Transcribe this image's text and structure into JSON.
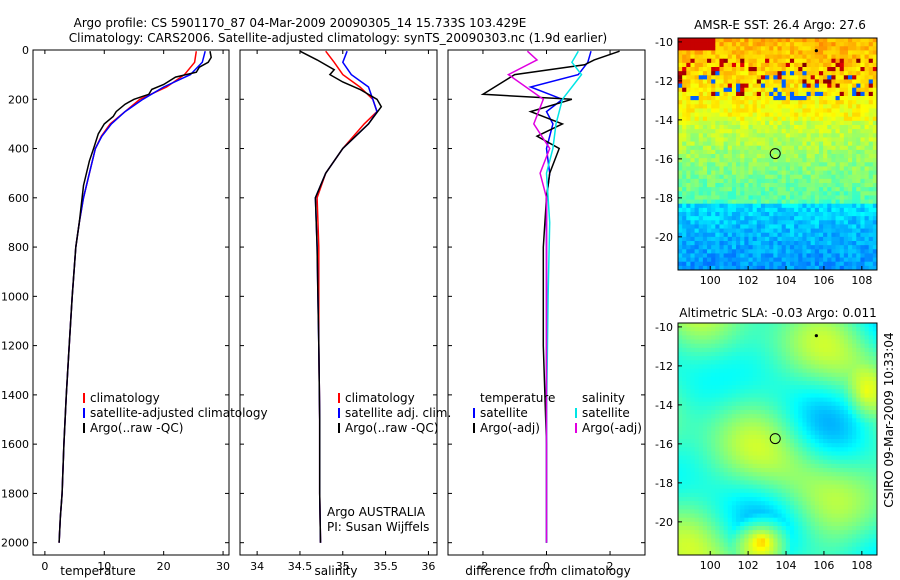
{
  "header": {
    "line1": "Argo profile: CS 5901170_87 04-Mar-2009 20090305_14 15.733S 103.429E",
    "line2": "Climatology: CARS2006. Satellite-adjusted climatology: synTS_20090303.nc (1.9d earlier)"
  },
  "footer_stamp": "CSIRO 09-Mar-2009 10:33:04",
  "chart_data": [
    {
      "type": "line",
      "panel": "temperature",
      "xlabel": "temperature",
      "xlim": [
        -2,
        31
      ],
      "ylim": [
        2050,
        0
      ],
      "xticks": [
        0,
        10,
        20,
        30
      ],
      "yticks": [
        0,
        200,
        400,
        600,
        800,
        1000,
        1200,
        1400,
        1600,
        1800,
        2000
      ],
      "legend": [
        "climatology",
        "satellite-adjusted climatology",
        "Argo(..raw -QC)"
      ],
      "series": [
        {
          "name": "climatology",
          "color": "#ff0000",
          "x": [
            25.5,
            25.2,
            23.5,
            20.5,
            16.0,
            13.5,
            11.0,
            9.5,
            8.5,
            7.5,
            6.5,
            5.8,
            5.2,
            4.6,
            4.1,
            3.6,
            3.2,
            2.9,
            2.6,
            2.4
          ],
          "y": [
            5,
            50,
            100,
            150,
            200,
            250,
            300,
            350,
            400,
            500,
            600,
            700,
            800,
            1000,
            1200,
            1400,
            1600,
            1800,
            1900,
            2000
          ]
        },
        {
          "name": "satellite-adjusted climatology",
          "color": "#0000ff",
          "x": [
            27.0,
            26.5,
            24.5,
            20.0,
            16.5,
            13.5,
            11.2,
            9.6,
            8.5,
            7.5,
            6.5,
            5.8,
            5.2,
            4.6,
            4.1,
            3.6,
            3.2,
            2.9,
            2.6,
            2.4
          ],
          "y": [
            5,
            50,
            100,
            150,
            200,
            250,
            300,
            350,
            400,
            500,
            600,
            700,
            800,
            1000,
            1200,
            1400,
            1600,
            1800,
            1900,
            2000
          ]
        },
        {
          "name": "Argo(..raw -QC)",
          "color": "#000000",
          "x": [
            27.8,
            28.0,
            27.5,
            26.0,
            25.5,
            22.0,
            20.0,
            18.0,
            17.5,
            15.0,
            13.5,
            12.0,
            11.5,
            10.0,
            9.0,
            8.2,
            7.5,
            6.5,
            5.8,
            5.2,
            4.6,
            4.1,
            3.6,
            3.2,
            2.9,
            2.6,
            2.4
          ],
          "y": [
            5,
            30,
            50,
            70,
            90,
            110,
            140,
            160,
            180,
            200,
            220,
            250,
            270,
            300,
            340,
            400,
            450,
            550,
            700,
            800,
            1000,
            1200,
            1400,
            1600,
            1800,
            1900,
            2000
          ]
        }
      ]
    },
    {
      "type": "line",
      "panel": "salinity",
      "xlabel": "salinity",
      "xlim": [
        33.8,
        36.1
      ],
      "ylim": [
        2050,
        0
      ],
      "xticks": [
        34,
        34.5,
        35,
        35.5,
        36
      ],
      "legend": [
        "climatology",
        "satellite adj. clim.",
        "Argo(..raw -QC)"
      ],
      "annotation": [
        "Argo AUSTRALIA",
        "PI: Susan Wijffels"
      ],
      "series": [
        {
          "name": "climatology",
          "color": "#ff0000",
          "x": [
            34.8,
            34.9,
            35.0,
            35.2,
            35.35,
            35.4,
            35.25,
            35.0,
            34.8,
            34.7,
            34.72,
            34.72,
            34.72,
            34.73,
            34.73,
            34.74
          ],
          "y": [
            5,
            50,
            100,
            150,
            200,
            250,
            300,
            400,
            500,
            600,
            800,
            1000,
            1200,
            1500,
            1800,
            2000
          ]
        },
        {
          "name": "satellite adj. clim.",
          "color": "#0000ff",
          "x": [
            35.05,
            35.0,
            35.1,
            35.3,
            35.35,
            35.4,
            35.3,
            35.0,
            34.8,
            34.68,
            34.7,
            34.71,
            34.72,
            34.73,
            34.73,
            34.74
          ],
          "y": [
            5,
            50,
            100,
            150,
            200,
            250,
            300,
            400,
            500,
            600,
            800,
            1000,
            1200,
            1500,
            1800,
            2000
          ]
        },
        {
          "name": "Argo(..raw -QC)",
          "color": "#000000",
          "x": [
            34.5,
            34.7,
            34.9,
            34.85,
            35.0,
            35.2,
            35.4,
            35.45,
            35.3,
            35.0,
            34.8,
            34.68,
            34.7,
            34.71,
            34.72,
            34.73,
            34.73,
            34.74
          ],
          "y": [
            5,
            40,
            80,
            100,
            130,
            160,
            200,
            230,
            300,
            400,
            500,
            600,
            800,
            1000,
            1200,
            1500,
            1800,
            2000
          ]
        }
      ]
    },
    {
      "type": "line",
      "panel": "difference",
      "xlabel": "difference from climatology",
      "xlim": [
        -3.1,
        3.1
      ],
      "ylim": [
        2050,
        0
      ],
      "xticks": [
        -2,
        0,
        2
      ],
      "legend": [
        "temperature",
        "satellite",
        "Argo(-adj)",
        "salinity",
        "satellite",
        "Argo(-adj)"
      ],
      "series": [
        {
          "name": "temperature satellite",
          "color": "#0000ff",
          "x": [
            1.4,
            1.3,
            1.0,
            -0.5,
            0.5,
            0.0,
            0.2,
            0.0,
            0.1,
            0.0,
            0.0,
            0.0,
            0.0,
            0.0
          ],
          "y": [
            5,
            50,
            100,
            150,
            200,
            250,
            300,
            400,
            500,
            600,
            800,
            1200,
            1600,
            2000
          ]
        },
        {
          "name": "temperature Argo(-adj)",
          "color": "#000000",
          "x": [
            2.3,
            1.5,
            1.2,
            -1.0,
            -2.0,
            0.8,
            -0.5,
            0.5,
            -0.3,
            0.4,
            0.1,
            0.0,
            -0.1,
            -0.1,
            0.0,
            0.0
          ],
          "y": [
            5,
            40,
            60,
            100,
            180,
            200,
            250,
            300,
            350,
            400,
            500,
            600,
            800,
            1200,
            1600,
            2000
          ]
        },
        {
          "name": "salinity satellite",
          "color": "#00e5e5",
          "x": [
            1.0,
            0.8,
            1.1,
            0.5,
            0.3,
            0.2,
            0.0,
            0.1,
            0.05,
            0.0,
            0.0
          ],
          "y": [
            5,
            50,
            100,
            200,
            300,
            400,
            500,
            700,
            1000,
            1500,
            2000
          ]
        },
        {
          "name": "salinity Argo(-adj)",
          "color": "#e000e0",
          "x": [
            -0.6,
            -0.3,
            -1.2,
            -0.1,
            -0.4,
            0.1,
            -0.2,
            0.0,
            0.0,
            0.0,
            0.0
          ],
          "y": [
            5,
            40,
            100,
            200,
            300,
            400,
            500,
            600,
            1000,
            1500,
            2000
          ]
        }
      ]
    },
    {
      "type": "heatmap",
      "panel": "sst",
      "title": "AMSR-E SST: 26.4 Argo: 27.6",
      "xlim": [
        98.3,
        108.8
      ],
      "ylim": [
        -21.7,
        -9.8
      ],
      "xticks": [
        100,
        102,
        104,
        106,
        108
      ],
      "yticks": [
        -10,
        -12,
        -14,
        -16,
        -18,
        -20
      ],
      "argo_position": [
        103.43,
        -15.73
      ]
    },
    {
      "type": "heatmap",
      "panel": "sla",
      "title": "Altimetric SLA: -0.03 Argo: 0.011",
      "xlim": [
        98.3,
        108.8
      ],
      "ylim": [
        -21.7,
        -9.8
      ],
      "xticks": [
        100,
        102,
        104,
        106,
        108
      ],
      "yticks": [
        -10,
        -12,
        -14,
        -16,
        -18,
        -20
      ],
      "argo_position": [
        103.43,
        -15.73
      ]
    }
  ]
}
